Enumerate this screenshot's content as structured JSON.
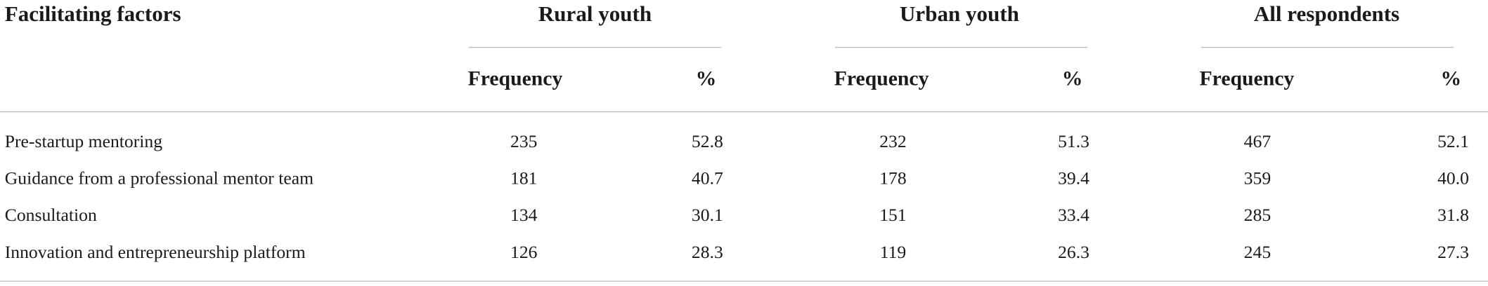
{
  "table": {
    "corner": "Facilitating factors",
    "groups": [
      "Rural youth",
      "Urban youth",
      "All respondents"
    ],
    "subheaders": [
      "Frequency",
      "%",
      "Frequency",
      "%",
      "Frequency",
      "%"
    ],
    "rows": [
      [
        "Pre-startup mentoring",
        "235",
        "52.8",
        "232",
        "51.3",
        "467",
        "52.1"
      ],
      [
        "Guidance from a professional mentor team",
        "181",
        "40.7",
        "178",
        "39.4",
        "359",
        "40.0"
      ],
      [
        "Consultation",
        "134",
        "30.1",
        "151",
        "33.4",
        "285",
        "31.8"
      ],
      [
        "Innovation and entrepreneurship platform",
        "126",
        "28.3",
        "119",
        "26.3",
        "245",
        "27.3"
      ]
    ]
  }
}
